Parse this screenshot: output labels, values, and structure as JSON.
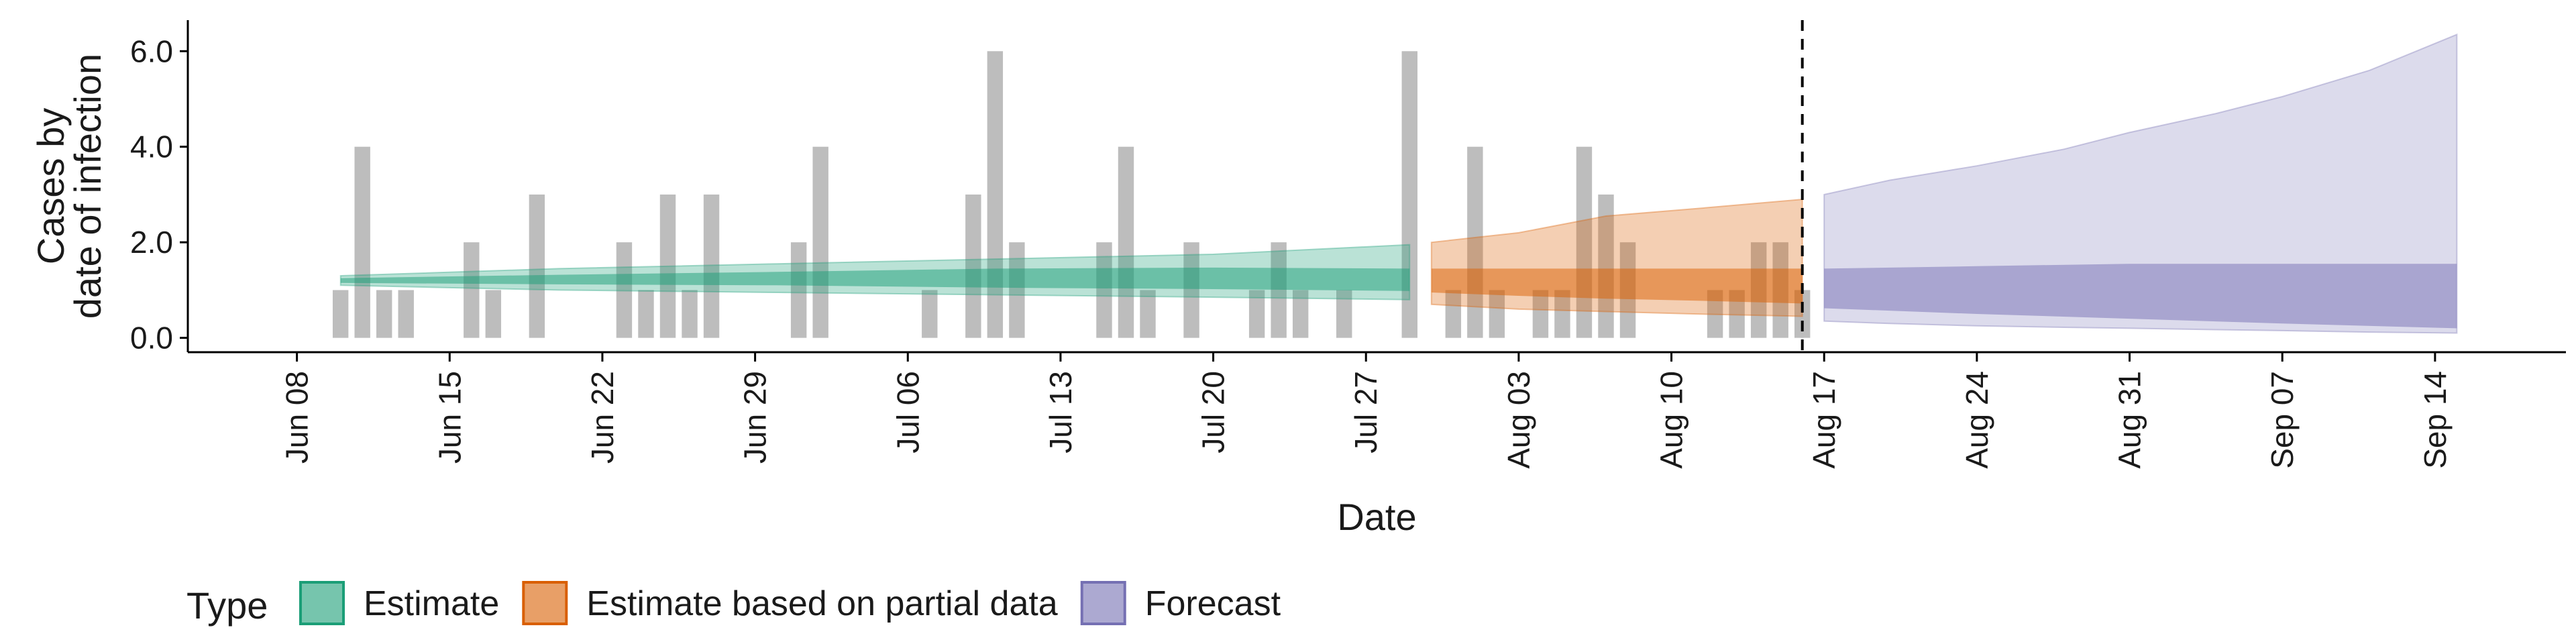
{
  "chart_data": {
    "type": "area",
    "xlabel": "Date",
    "ylabel_lines": [
      "Cases by",
      "date of infection"
    ],
    "y_ticks": [
      "0.0",
      "2.0",
      "4.0",
      "6.0"
    ],
    "y_tick_values": [
      0,
      2,
      4,
      6
    ],
    "ylim": [
      -0.3,
      6.65
    ],
    "xlim": [
      "2020-06-03",
      "2020-09-20"
    ],
    "x_ticks": [
      {
        "date": "2020-06-08",
        "label": "Jun 08"
      },
      {
        "date": "2020-06-15",
        "label": "Jun 15"
      },
      {
        "date": "2020-06-22",
        "label": "Jun 22"
      },
      {
        "date": "2020-06-29",
        "label": "Jun 29"
      },
      {
        "date": "2020-07-06",
        "label": "Jul 06"
      },
      {
        "date": "2020-07-13",
        "label": "Jul 13"
      },
      {
        "date": "2020-07-20",
        "label": "Jul 20"
      },
      {
        "date": "2020-07-27",
        "label": "Jul 27"
      },
      {
        "date": "2020-08-03",
        "label": "Aug 03"
      },
      {
        "date": "2020-08-10",
        "label": "Aug 10"
      },
      {
        "date": "2020-08-17",
        "label": "Aug 17"
      },
      {
        "date": "2020-08-24",
        "label": "Aug 24"
      },
      {
        "date": "2020-08-31",
        "label": "Aug 31"
      },
      {
        "date": "2020-09-07",
        "label": "Sep 07"
      },
      {
        "date": "2020-09-14",
        "label": "Sep 14"
      }
    ],
    "reported_cases": {
      "color": "#bdbdbd",
      "points": [
        [
          "2020-06-10",
          1
        ],
        [
          "2020-06-11",
          4
        ],
        [
          "2020-06-12",
          1
        ],
        [
          "2020-06-13",
          1
        ],
        [
          "2020-06-16",
          2
        ],
        [
          "2020-06-17",
          1
        ],
        [
          "2020-06-19",
          3
        ],
        [
          "2020-06-23",
          2
        ],
        [
          "2020-06-24",
          1
        ],
        [
          "2020-06-25",
          3
        ],
        [
          "2020-06-26",
          1
        ],
        [
          "2020-06-27",
          3
        ],
        [
          "2020-07-01",
          2
        ],
        [
          "2020-07-02",
          4
        ],
        [
          "2020-07-07",
          1
        ],
        [
          "2020-07-09",
          3
        ],
        [
          "2020-07-10",
          6
        ],
        [
          "2020-07-11",
          2
        ],
        [
          "2020-07-15",
          2
        ],
        [
          "2020-07-16",
          4
        ],
        [
          "2020-07-17",
          1
        ],
        [
          "2020-07-19",
          2
        ],
        [
          "2020-07-22",
          1
        ],
        [
          "2020-07-23",
          2
        ],
        [
          "2020-07-24",
          1
        ],
        [
          "2020-07-26",
          1
        ],
        [
          "2020-07-29",
          6
        ],
        [
          "2020-07-31",
          1
        ],
        [
          "2020-08-01",
          4
        ],
        [
          "2020-08-02",
          1
        ],
        [
          "2020-08-04",
          1
        ],
        [
          "2020-08-05",
          1
        ],
        [
          "2020-08-06",
          4
        ],
        [
          "2020-08-07",
          3
        ],
        [
          "2020-08-08",
          2
        ],
        [
          "2020-08-12",
          1
        ],
        [
          "2020-08-13",
          1
        ],
        [
          "2020-08-14",
          2
        ],
        [
          "2020-08-15",
          2
        ],
        [
          "2020-08-16",
          1
        ]
      ]
    },
    "vline_date": "2020-08-16",
    "series": [
      {
        "name": "Estimate",
        "fill": "#1b9e77",
        "edge": "#1b9e77",
        "band90": [
          [
            "2020-06-10",
            1.1,
            1.3
          ],
          [
            "2020-06-20",
            1.0,
            1.45
          ],
          [
            "2020-06-30",
            0.95,
            1.55
          ],
          [
            "2020-07-10",
            0.9,
            1.65
          ],
          [
            "2020-07-20",
            0.85,
            1.75
          ],
          [
            "2020-07-29",
            0.8,
            1.95
          ]
        ],
        "band50": [
          [
            "2020-06-10",
            1.15,
            1.25
          ],
          [
            "2020-06-20",
            1.12,
            1.32
          ],
          [
            "2020-06-30",
            1.1,
            1.38
          ],
          [
            "2020-07-10",
            1.05,
            1.45
          ],
          [
            "2020-07-20",
            1.02,
            1.47
          ],
          [
            "2020-07-29",
            0.98,
            1.45
          ]
        ]
      },
      {
        "name": "Estimate based on partial data",
        "fill": "#d95f02",
        "edge": "#d95f02",
        "band90": [
          [
            "2020-07-30",
            0.7,
            2.0
          ],
          [
            "2020-08-03",
            0.6,
            2.2
          ],
          [
            "2020-08-07",
            0.55,
            2.55
          ],
          [
            "2020-08-11",
            0.5,
            2.7
          ],
          [
            "2020-08-16",
            0.45,
            2.9
          ]
        ],
        "band50": [
          [
            "2020-07-30",
            0.95,
            1.45
          ],
          [
            "2020-08-03",
            0.88,
            1.45
          ],
          [
            "2020-08-07",
            0.82,
            1.45
          ],
          [
            "2020-08-11",
            0.78,
            1.45
          ],
          [
            "2020-08-16",
            0.72,
            1.45
          ]
        ]
      },
      {
        "name": "Forecast",
        "fill": "#7570b3",
        "edge": "#7570b3",
        "band90": [
          [
            "2020-08-17",
            0.35,
            3.0
          ],
          [
            "2020-08-20",
            0.3,
            3.3
          ],
          [
            "2020-08-24",
            0.25,
            3.6
          ],
          [
            "2020-08-28",
            0.22,
            3.95
          ],
          [
            "2020-08-31",
            0.2,
            4.3
          ],
          [
            "2020-09-04",
            0.17,
            4.7
          ],
          [
            "2020-09-07",
            0.15,
            5.05
          ],
          [
            "2020-09-11",
            0.12,
            5.6
          ],
          [
            "2020-09-15",
            0.1,
            6.35
          ]
        ],
        "band50": [
          [
            "2020-08-17",
            0.62,
            1.45
          ],
          [
            "2020-08-24",
            0.5,
            1.5
          ],
          [
            "2020-08-31",
            0.4,
            1.55
          ],
          [
            "2020-09-07",
            0.3,
            1.55
          ],
          [
            "2020-09-15",
            0.2,
            1.55
          ]
        ]
      }
    ],
    "legend": {
      "title": "Type",
      "position": "bottom",
      "items": [
        {
          "label": "Estimate",
          "color": "#1b9e77"
        },
        {
          "label": "Estimate based on partial data",
          "color": "#d95f02"
        },
        {
          "label": "Forecast",
          "color": "#7570b3"
        }
      ]
    }
  }
}
